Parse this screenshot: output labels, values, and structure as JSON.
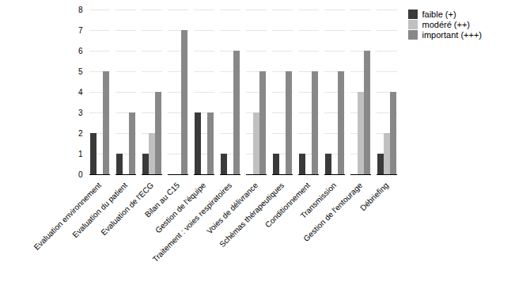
{
  "chart_data": {
    "type": "bar",
    "categories": [
      "Evaluation environnement",
      "Evaluation du patient",
      "Evaluation de l'ECG",
      "Bilan au C15",
      "Gestion de l'équipe",
      "Traitement : voies respiratoires",
      "Voies de délivrance",
      "Schémas thérapeutiques",
      "Conditionnement",
      "Transmission",
      "Gestion de l'entourage",
      "Débriefing"
    ],
    "series": [
      {
        "name": "faible (+)",
        "color": "#3a3a3a",
        "values": [
          2,
          1,
          1,
          0,
          3,
          1,
          0,
          1,
          1,
          1,
          0,
          1
        ]
      },
      {
        "name": "modéré (++)",
        "color": "#c0c0c0",
        "values": [
          0,
          0,
          2,
          0,
          0,
          0,
          3,
          0,
          0,
          0,
          4,
          2
        ]
      },
      {
        "name": "important (+++)",
        "color": "#888888",
        "values": [
          5,
          3,
          4,
          7,
          3,
          6,
          5,
          5,
          5,
          5,
          6,
          4
        ]
      }
    ],
    "ylim": [
      0,
      8
    ],
    "yticks": [
      0,
      1,
      2,
      3,
      4,
      5,
      6,
      7,
      8
    ],
    "grid": true,
    "legend": "right"
  }
}
